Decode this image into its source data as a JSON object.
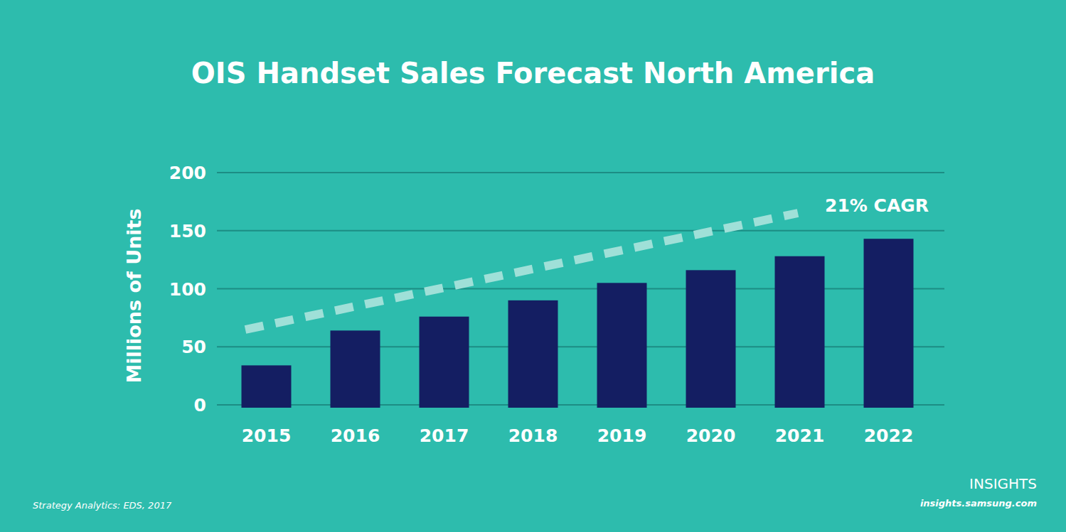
{
  "chart_data": {
    "type": "bar",
    "title": "OIS Handset Sales Forecast North America",
    "y_label": "Millions of Units",
    "categories": [
      "2015",
      "2016",
      "2017",
      "2018",
      "2019",
      "2020",
      "2021",
      "2022"
    ],
    "values": [
      34,
      64,
      76,
      90,
      105,
      116,
      128,
      143
    ],
    "color": "#141e62",
    "ylim": [
      0,
      200
    ],
    "yticks": [
      0,
      50,
      100,
      150,
      200
    ],
    "grid": true,
    "annotations": [
      "21% CAGR"
    ],
    "source": "Strategy Analytics: EDS, 2017",
    "footer": [
      "INSIGHTS",
      "insights.samsung.com"
    ]
  }
}
